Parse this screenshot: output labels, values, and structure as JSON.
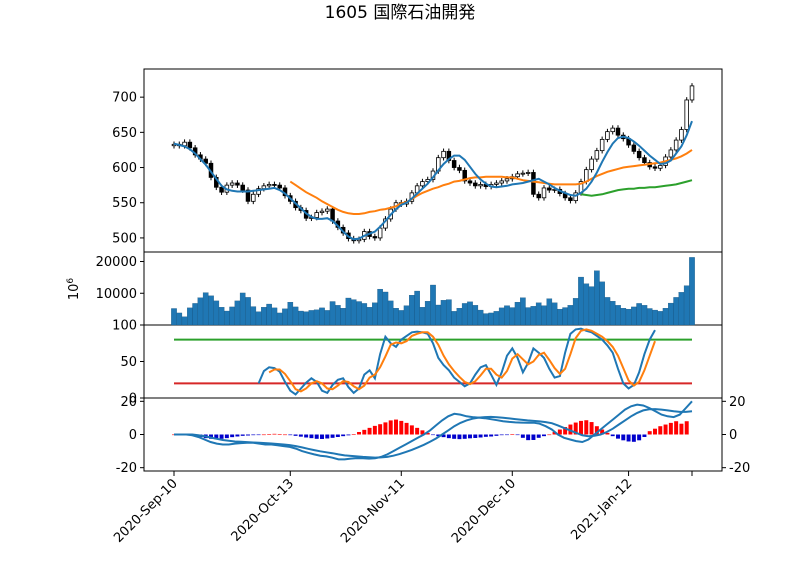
{
  "title": "1605 国際石油開発",
  "colors": {
    "ma_short": "#1f77b4",
    "ma_mid": "#ff7f0e",
    "ma_long": "#2ca02c",
    "volume": "#1f77b4",
    "stoch_k": "#1f77b4",
    "stoch_d": "#ff7f0e",
    "stoch_upper": "#2ca02c",
    "stoch_lower": "#d62728",
    "macd_pos": "#ff0000",
    "macd_neg": "#0000cc"
  },
  "x_tick_labels": [
    "2020-Sep-10",
    "2020-Oct-13",
    "2020-Nov-11",
    "2020-Dec-10",
    "2021-Jan-12"
  ],
  "x_tick_index": [
    0,
    22,
    43,
    64,
    86
  ],
  "chart_data": [
    {
      "type": "candlestick",
      "title": "1605 国際石油開発",
      "ylim": [
        480,
        740
      ],
      "yticks": [
        500,
        550,
        600,
        650,
        700
      ],
      "close": [
        633,
        631,
        636,
        628,
        618,
        612,
        606,
        586,
        572,
        565,
        575,
        578,
        575,
        568,
        552,
        562,
        570,
        574,
        576,
        575,
        571,
        560,
        552,
        543,
        539,
        528,
        529,
        536,
        538,
        541,
        524,
        515,
        507,
        499,
        496,
        498,
        509,
        502,
        500,
        514,
        527,
        541,
        550,
        548,
        552,
        564,
        574,
        580,
        583,
        595,
        614,
        623,
        610,
        600,
        596,
        581,
        578,
        574,
        576,
        573,
        576,
        578,
        581,
        584,
        587,
        591,
        592,
        593,
        562,
        557,
        571,
        568,
        569,
        563,
        557,
        553,
        564,
        580,
        597,
        612,
        624,
        640,
        651,
        656,
        646,
        641,
        632,
        623,
        614,
        607,
        601,
        599,
        603,
        615,
        625,
        639,
        654,
        696,
        716
      ],
      "ma_short": [
        634,
        632,
        630,
        626,
        620,
        612,
        604,
        594,
        584,
        574,
        569,
        567,
        566,
        566,
        566,
        567,
        568,
        569,
        570,
        571,
        568,
        563,
        556,
        549,
        542,
        535,
        530,
        527,
        527,
        528,
        524,
        517,
        509,
        502,
        498,
        499,
        503,
        506,
        509,
        516,
        524,
        533,
        541,
        547,
        550,
        556,
        563,
        570,
        577,
        586,
        596,
        605,
        612,
        617,
        617,
        611,
        601,
        591,
        583,
        577,
        573,
        572,
        573,
        574,
        576,
        577,
        578,
        580,
        582,
        584,
        580,
        576,
        571,
        567,
        564,
        561,
        560,
        564,
        570,
        580,
        593,
        608,
        622,
        634,
        642,
        644,
        642,
        637,
        631,
        624,
        617,
        611,
        605,
        606,
        610,
        620,
        630,
        646,
        666
      ],
      "ma_mid": [
        null,
        null,
        null,
        null,
        null,
        null,
        null,
        null,
        null,
        null,
        null,
        null,
        null,
        null,
        null,
        null,
        null,
        null,
        null,
        null,
        null,
        null,
        580,
        575,
        570,
        565,
        561,
        557,
        552,
        548,
        544,
        540,
        537,
        535,
        534,
        534,
        535,
        537,
        538,
        540,
        541,
        543,
        545,
        549,
        551,
        555,
        560,
        564,
        567,
        570,
        572,
        575,
        577,
        580,
        581,
        583,
        585,
        586,
        586,
        587,
        587,
        587,
        587,
        586,
        586,
        584,
        582,
        581,
        580,
        579,
        578,
        577,
        576,
        576,
        576,
        576,
        576,
        577,
        580,
        584,
        588,
        591,
        594,
        596,
        598,
        600,
        601,
        602,
        603,
        604,
        605,
        606,
        607,
        609,
        611,
        613,
        616,
        620,
        625
      ],
      "ma_long": [
        null,
        null,
        null,
        null,
        null,
        null,
        null,
        null,
        null,
        null,
        null,
        null,
        null,
        null,
        null,
        null,
        null,
        null,
        null,
        null,
        null,
        null,
        null,
        null,
        null,
        null,
        null,
        null,
        null,
        null,
        null,
        null,
        null,
        null,
        null,
        null,
        null,
        null,
        null,
        null,
        null,
        null,
        null,
        null,
        null,
        null,
        null,
        null,
        null,
        null,
        null,
        null,
        null,
        null,
        null,
        null,
        null,
        null,
        null,
        null,
        null,
        null,
        null,
        null,
        null,
        null,
        null,
        null,
        null,
        null,
        null,
        null,
        null,
        null,
        null,
        null,
        null,
        562,
        561,
        560,
        561,
        562,
        564,
        566,
        568,
        569,
        570,
        570,
        571,
        571,
        572,
        572,
        573,
        574,
        575,
        576,
        578,
        580,
        582
      ]
    },
    {
      "type": "bar",
      "ylabel": "10^6",
      "ylim": [
        0,
        23000
      ],
      "yticks": [
        10000,
        20000
      ],
      "values": [
        5200,
        3800,
        2600,
        5400,
        6800,
        8600,
        10200,
        9200,
        7600,
        5600,
        4400,
        5700,
        7600,
        10100,
        8700,
        5800,
        4200,
        5600,
        6600,
        5400,
        3800,
        5100,
        7200,
        5700,
        4400,
        4200,
        4600,
        4800,
        5400,
        4600,
        7400,
        6200,
        5300,
        8500,
        8000,
        7400,
        6800,
        5600,
        7000,
        11300,
        10400,
        7600,
        5300,
        4600,
        6100,
        9400,
        10700,
        5600,
        7500,
        12600,
        6300,
        7800,
        8000,
        4300,
        5300,
        6800,
        7300,
        6200,
        4700,
        3600,
        3800,
        4300,
        5400,
        6100,
        5500,
        7200,
        8600,
        5500,
        5900,
        7000,
        6100,
        8300,
        7000,
        5000,
        5500,
        6200,
        8400,
        15100,
        13000,
        12100,
        17100,
        13600,
        8700,
        7500,
        6200,
        5300,
        5000,
        5700,
        6800,
        6200,
        5200,
        4700,
        4300,
        5300,
        6900,
        8700,
        10300,
        12400,
        21300
      ]
    },
    {
      "type": "line",
      "ylim": [
        0,
        100
      ],
      "yticks": [
        0,
        50,
        100
      ],
      "upper": 80,
      "lower": 20,
      "k": [
        null,
        null,
        null,
        null,
        null,
        null,
        null,
        null,
        null,
        null,
        null,
        null,
        null,
        null,
        null,
        null,
        20,
        37,
        42,
        41,
        36,
        22,
        10,
        5,
        13,
        21,
        27,
        22,
        10,
        7,
        18,
        25,
        27,
        15,
        7,
        13,
        32,
        38,
        27,
        60,
        84,
        75,
        70,
        80,
        85,
        90,
        91,
        90,
        88,
        75,
        55,
        45,
        38,
        28,
        22,
        16,
        20,
        32,
        42,
        45,
        32,
        18,
        35,
        58,
        68,
        55,
        35,
        48,
        68,
        62,
        55,
        40,
        28,
        30,
        62,
        88,
        94,
        95,
        92,
        90,
        85,
        80,
        72,
        62,
        40,
        20,
        13,
        18,
        35,
        60,
        80,
        93
      ],
      "d": [
        null,
        null,
        null,
        null,
        null,
        null,
        null,
        null,
        null,
        null,
        null,
        null,
        null,
        null,
        null,
        null,
        null,
        null,
        35,
        39,
        39,
        33,
        23,
        12,
        9,
        13,
        20,
        23,
        20,
        13,
        12,
        17,
        23,
        22,
        16,
        12,
        17,
        28,
        32,
        42,
        57,
        73,
        76,
        75,
        78,
        85,
        88,
        90,
        90,
        84,
        73,
        58,
        46,
        37,
        29,
        22,
        19,
        23,
        31,
        40,
        40,
        32,
        28,
        37,
        54,
        60,
        53,
        46,
        50,
        59,
        62,
        52,
        41,
        33,
        40,
        60,
        82,
        92,
        94,
        92,
        88,
        84,
        78,
        70,
        58,
        41,
        24,
        17,
        22,
        38,
        58,
        78
      ]
    },
    {
      "type": "bar+line",
      "ylim": [
        -22,
        22
      ],
      "yticks": [
        -20,
        0,
        20
      ],
      "macd": [
        0,
        0,
        0,
        -0.5,
        -1.5,
        -3,
        -4.5,
        -5.5,
        -6,
        -6,
        -5.5,
        -5.2,
        -5,
        -5,
        -5.5,
        -6,
        -6,
        -6.5,
        -7,
        -7.5,
        -8.5,
        -10,
        -11,
        -12,
        -12.8,
        -13.2,
        -14,
        -15,
        -15,
        -14.5,
        -14.2,
        -14.3,
        -14.5,
        -14.3,
        -13.5,
        -12,
        -10,
        -8,
        -6,
        -4,
        -2,
        0,
        2.5,
        5.5,
        8.5,
        11,
        12.5,
        12,
        11,
        10.5,
        10.2,
        9.8,
        9.2,
        8.6,
        8,
        7.6,
        7.3,
        7.2,
        7.1,
        7.1,
        6.5,
        5,
        3,
        0,
        -2,
        -3,
        -4,
        -4.5,
        -3,
        0,
        3,
        6,
        9,
        12,
        15,
        17,
        18,
        17.5,
        16,
        14,
        12,
        11,
        10.5,
        12,
        16,
        20
      ],
      "signal": [
        0,
        0,
        0,
        0,
        -0.5,
        -1,
        -1.8,
        -2.6,
        -3.3,
        -3.8,
        -4.2,
        -4.4,
        -4.6,
        -4.8,
        -5,
        -5.2,
        -5.4,
        -5.7,
        -6,
        -6.4,
        -7,
        -7.8,
        -8.6,
        -9.4,
        -10.1,
        -10.7,
        -11.3,
        -12,
        -12.6,
        -12.9,
        -13.2,
        -13.5,
        -13.7,
        -13.9,
        -13.8,
        -13.5,
        -12.8,
        -11.8,
        -10.6,
        -9.3,
        -7.8,
        -6.2,
        -4.4,
        -2.4,
        0,
        2.5,
        5,
        7,
        8.5,
        9.5,
        10.2,
        10.5,
        10.6,
        10.4,
        10.1,
        9.7,
        9.3,
        8.9,
        8.5,
        8.2,
        7.9,
        7.5,
        6.8,
        5.5,
        4,
        2.5,
        1,
        -0.5,
        -1,
        -0.8,
        0,
        1.5,
        3.5,
        6,
        8.5,
        11,
        13,
        14.5,
        15.2,
        15.3,
        15,
        14.5,
        14,
        13.6,
        13.6,
        14
      ],
      "histogram": [
        0,
        0,
        0,
        -0.4,
        -1,
        -1.6,
        -2.2,
        -2.6,
        -2.8,
        -2.6,
        -2.2,
        -1.6,
        -1.2,
        -0.8,
        -0.6,
        -0.4,
        -0.2,
        0,
        0.2,
        0.4,
        0.3,
        0,
        -0.4,
        -0.8,
        -1.3,
        -1.8,
        -2.2,
        -2.6,
        -2.7,
        -2.4,
        -2,
        -1.5,
        -1,
        -0.5,
        0.2,
        1.5,
        2.8,
        4,
        5.2,
        6.2,
        7.3,
        8.5,
        9,
        8.2,
        7,
        5.5,
        4,
        2.5,
        1,
        -0.2,
        -1,
        -1.6,
        -2.2,
        -2.6,
        -2.8,
        -2.6,
        -2.3,
        -2.1,
        -1.8,
        -1.4,
        -1.2,
        -0.8,
        -0.4,
        -0.1,
        0.2,
        -0.2,
        -2,
        -3.4,
        -3.3,
        -2,
        -1,
        0,
        1.5,
        3,
        4.5,
        6,
        7.2,
        8.2,
        8.6,
        7.5,
        5,
        3,
        1,
        -1,
        -2.5,
        -3.5,
        -4.2,
        -4.4,
        -3.5,
        -1.5,
        2,
        6.5
      ],
      "histogram_tail": [
        -1.8,
        -1.2,
        -0.5,
        0,
        1,
        2.5,
        4.5,
        8
      ],
      "hist_fixed": [
        0,
        0,
        0,
        -0.4,
        -1,
        -1.6,
        -2.2,
        -2.6,
        -2.8,
        -2.6,
        -2.2,
        -1.6,
        -1.2,
        -0.8,
        -0.6,
        -0.4,
        -0.2,
        0,
        0.2,
        0.4,
        0.3,
        0,
        -0.4,
        -0.8,
        -1.3,
        -1.8,
        -2.2,
        -2.6,
        -2.7,
        -2.4,
        -2,
        -1.5,
        -1,
        -0.5,
        0.2,
        1.5,
        2.8,
        4,
        5.2,
        6.2,
        7.3,
        8.5,
        9,
        8.2,
        7,
        5.5,
        4,
        2.5,
        1,
        -0.2,
        -1,
        -1.6,
        -2.2,
        -2.6,
        -2.8,
        -2.6,
        -2.3,
        -2.1,
        -1.8,
        -1.4,
        -1.2,
        -0.8,
        -0.4,
        -0.1,
        0.2,
        -0.2,
        -2,
        -3.4,
        -3.3,
        -2,
        -1,
        0,
        1.5,
        3,
        4.5,
        6,
        7.2,
        8.2,
        8.6,
        7.5,
        5,
        3,
        1,
        -1,
        -2.5,
        -3.5,
        -4.2,
        -4.4,
        -3.5,
        -1.5,
        2,
        3.5,
        5,
        6,
        7,
        8,
        6.5,
        8
      ]
    }
  ]
}
